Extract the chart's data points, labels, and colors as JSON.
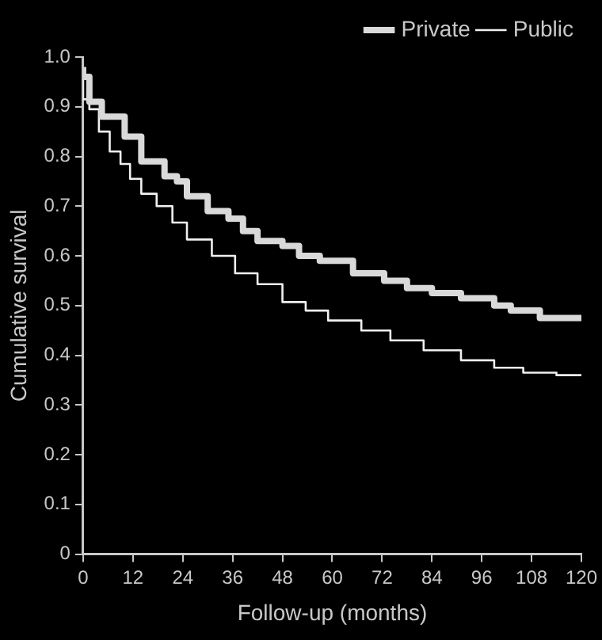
{
  "chart_data": {
    "type": "step",
    "xlabel": "Follow-up (months)",
    "ylabel": "Cumulative survival",
    "xlim": [
      0,
      120
    ],
    "xticks": [
      0,
      12,
      24,
      36,
      48,
      60,
      72,
      84,
      96,
      108,
      120
    ],
    "ylim": [
      0,
      1
    ],
    "yticks": [
      0,
      0.1,
      0.2,
      0.3,
      0.4,
      0.5,
      0.6,
      0.7,
      0.8,
      0.9,
      {
        "value": 1,
        "label": "1.0"
      }
    ],
    "grid": false,
    "legend": "top right",
    "marker": "none",
    "line_style": "solid",
    "series": [
      {
        "name": "Private",
        "color": "#d9d9d9",
        "x": [
          0,
          1.5,
          4.5,
          10,
          14,
          19.6,
          22.6,
          25,
          30,
          35,
          38.5,
          42,
          48,
          52,
          57,
          65,
          72.5,
          78,
          84,
          91,
          99,
          103,
          110,
          116,
          120
        ],
        "values": [
          0.98,
          0.96,
          0.91,
          0.88,
          0.84,
          0.79,
          0.76,
          0.75,
          0.72,
          0.69,
          0.675,
          0.65,
          0.63,
          0.62,
          0.6,
          0.59,
          0.565,
          0.55,
          0.535,
          0.525,
          0.515,
          0.5,
          0.49,
          0.475,
          0.475
        ]
      },
      {
        "name": "Public",
        "color": "#f0f0f0",
        "x": [
          0,
          1.5,
          3.8,
          6.4,
          9,
          11.3,
          14,
          17.7,
          21.5,
          25,
          31,
          36.6,
          42,
          48,
          53.6,
          59,
          67,
          74,
          82,
          91,
          99,
          106,
          114,
          120
        ],
        "values": [
          0.96,
          0.915,
          0.895,
          0.85,
          0.81,
          0.785,
          0.755,
          0.725,
          0.7,
          0.667,
          0.633,
          0.6,
          0.565,
          0.543,
          0.507,
          0.49,
          0.47,
          0.45,
          0.43,
          0.41,
          0.39,
          0.375,
          0.365,
          0.36
        ]
      }
    ]
  }
}
